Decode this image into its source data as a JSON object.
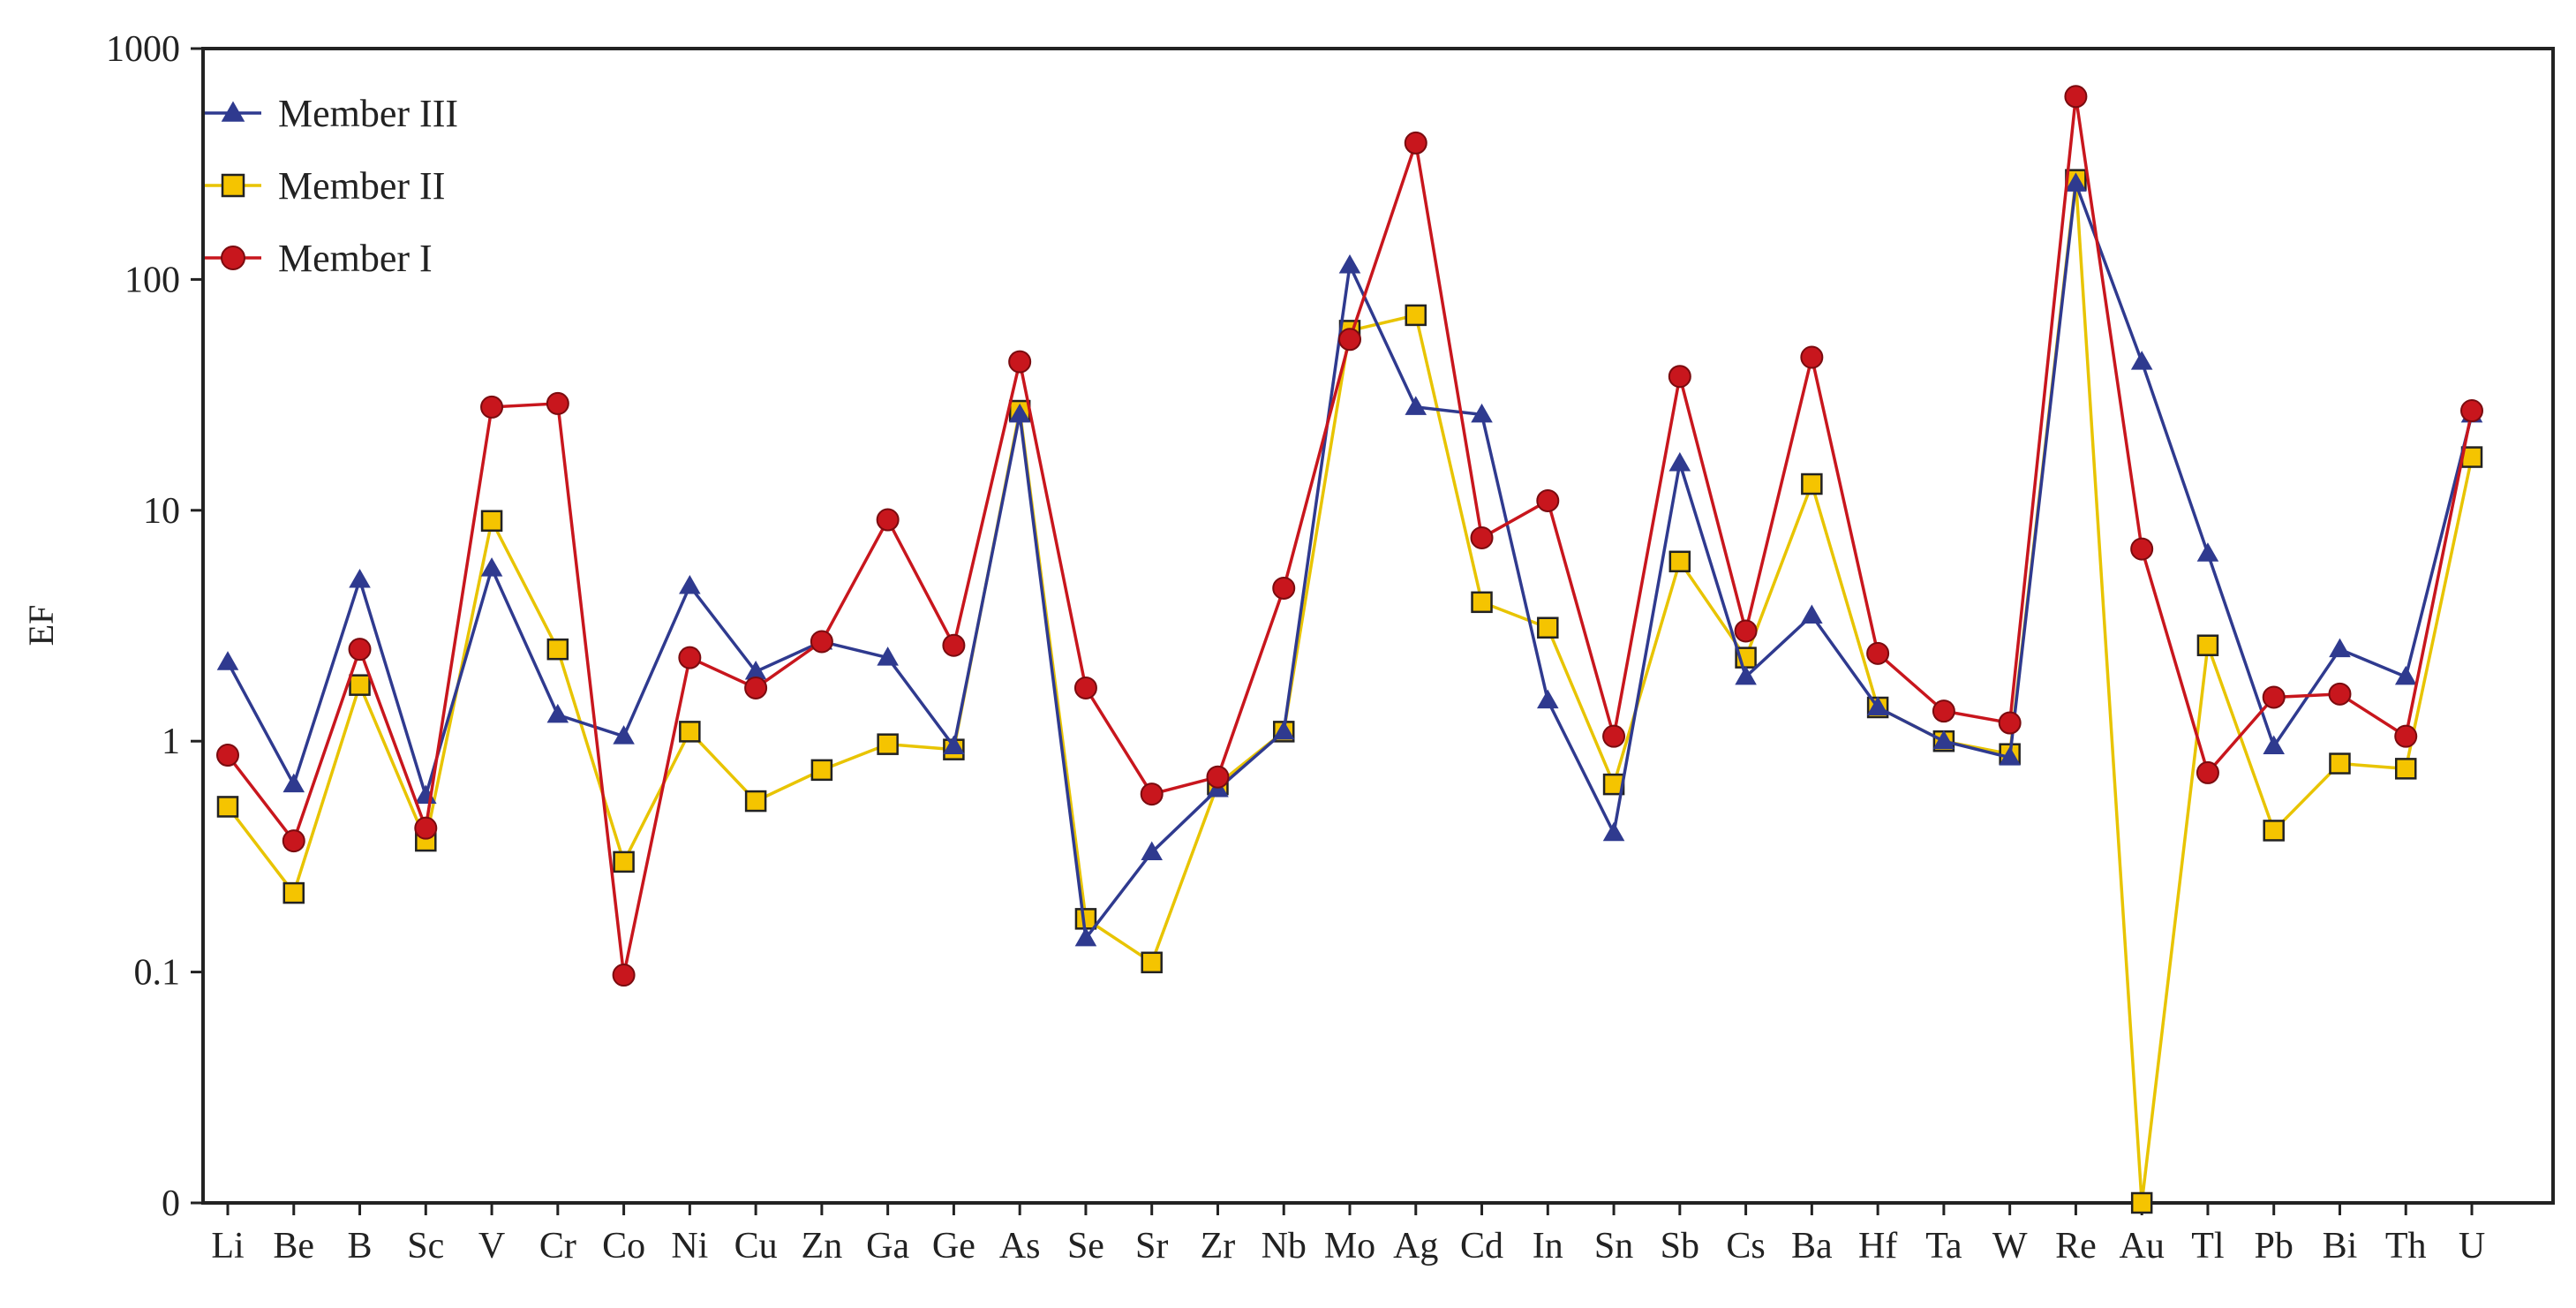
{
  "chart_data": {
    "type": "line",
    "title": "",
    "xlabel": "",
    "ylabel": "EF",
    "yscale": "log",
    "y_ticks": [
      {
        "value": 0.01,
        "label": "0"
      },
      {
        "value": 0.1,
        "label": "0.1"
      },
      {
        "value": 1,
        "label": "1"
      },
      {
        "value": 10,
        "label": "10"
      },
      {
        "value": 100,
        "label": "100"
      },
      {
        "value": 1000,
        "label": "1000"
      }
    ],
    "ylim": [
      0.01,
      1000
    ],
    "grid": false,
    "legend_position": "top-left",
    "categories": [
      "Li",
      "Be",
      "B",
      "Sc",
      "V",
      "Cr",
      "Co",
      "Ni",
      "Cu",
      "Zn",
      "Ga",
      "Ge",
      "As",
      "Se",
      "Sr",
      "Zr",
      "Nb",
      "Mo",
      "Ag",
      "Cd",
      "In",
      "Sn",
      "Sb",
      "Cs",
      "Ba",
      "Hf",
      "Ta",
      "W",
      "Re",
      "Au",
      "Tl",
      "Pb",
      "Bi",
      "Th",
      "U"
    ],
    "series": [
      {
        "name": "Member III",
        "color": "#2f3a8f",
        "marker": "triangle",
        "values": [
          2.2,
          0.65,
          5.0,
          0.58,
          5.6,
          1.3,
          1.05,
          4.7,
          2.0,
          2.7,
          2.3,
          0.95,
          26,
          0.14,
          0.33,
          0.62,
          1.1,
          115,
          28,
          26,
          1.5,
          0.4,
          16,
          1.9,
          3.5,
          1.4,
          1.0,
          0.85,
          260,
          44,
          6.5,
          0.95,
          2.5,
          1.9,
          26
        ]
      },
      {
        "name": "Member II",
        "color": "#e8c400",
        "marker": "square",
        "values": [
          0.52,
          0.22,
          1.75,
          0.37,
          9.0,
          2.5,
          0.3,
          1.1,
          0.55,
          0.75,
          0.97,
          0.92,
          27,
          0.17,
          0.11,
          0.65,
          1.1,
          60,
          70,
          4.0,
          3.1,
          0.65,
          6.0,
          2.3,
          13,
          1.4,
          1.0,
          0.88,
          270,
          0.01,
          2.6,
          0.41,
          0.8,
          0.76,
          17
        ]
      },
      {
        "name": "Member I",
        "color": "#c8161d",
        "marker": "circle",
        "values": [
          0.87,
          0.37,
          2.5,
          0.42,
          28,
          29,
          0.097,
          2.3,
          1.7,
          2.7,
          9.1,
          2.6,
          44,
          1.7,
          0.59,
          0.7,
          4.6,
          55,
          390,
          7.6,
          11,
          1.05,
          38,
          3.0,
          46,
          2.4,
          1.35,
          1.2,
          620,
          6.8,
          0.73,
          1.55,
          1.6,
          1.05,
          27
        ]
      }
    ]
  }
}
